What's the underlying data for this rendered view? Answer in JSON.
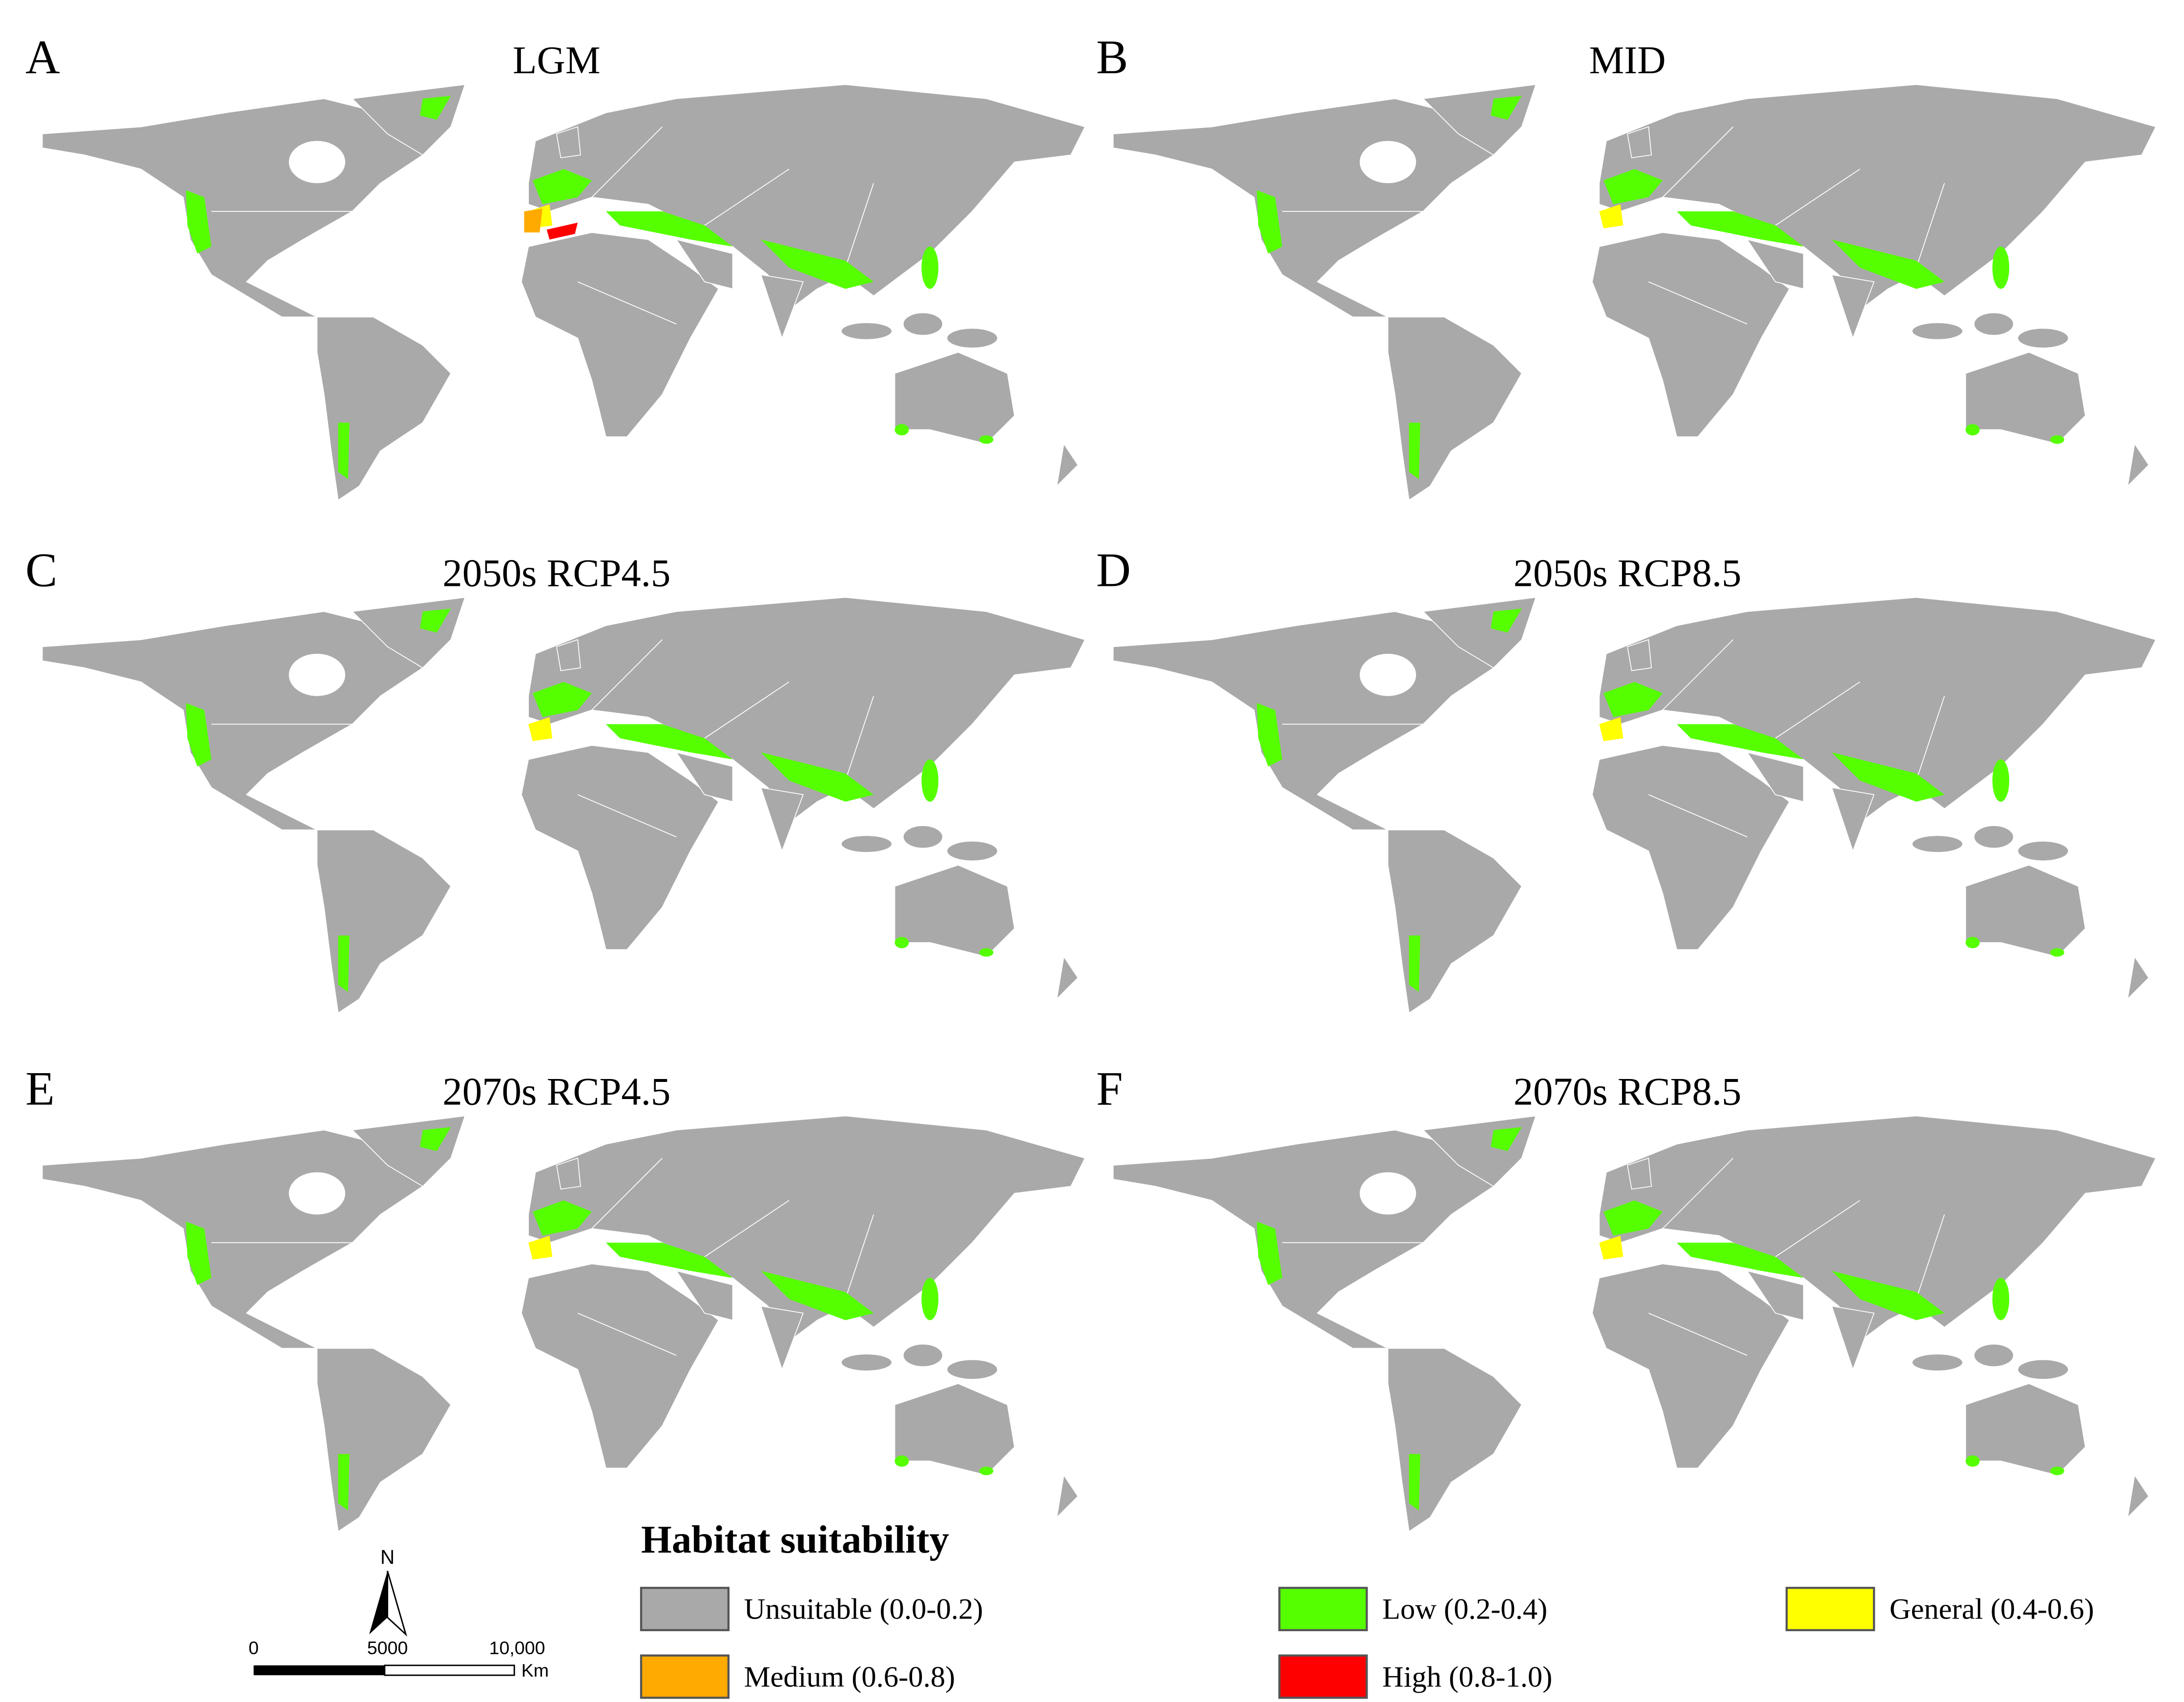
{
  "panels": [
    {
      "letter": "A",
      "title": "LGM"
    },
    {
      "letter": "B",
      "title": "MID"
    },
    {
      "letter": "C",
      "title": "2050s RCP4.5"
    },
    {
      "letter": "D",
      "title": "2050s RCP8.5"
    },
    {
      "letter": "E",
      "title": "2070s RCP4.5"
    },
    {
      "letter": "F",
      "title": "2070s RCP8.5"
    }
  ],
  "legend": {
    "title": "Habitat suitability",
    "items": [
      {
        "label": "Unsuitable (0.0-0.2)",
        "color": "#a9a9a9"
      },
      {
        "label": "Low (0.2-0.4)",
        "color": "#55ff00"
      },
      {
        "label": "General (0.4-0.6)",
        "color": "#ffff00"
      },
      {
        "label": "Medium (0.6-0.8)",
        "color": "#ffaa00"
      },
      {
        "label": "High (0.8-1.0)",
        "color": "#ff0000"
      }
    ]
  },
  "north": "N",
  "scale_bar": {
    "labels": [
      "0",
      "5000",
      "10,000"
    ],
    "unit": "Km"
  }
}
